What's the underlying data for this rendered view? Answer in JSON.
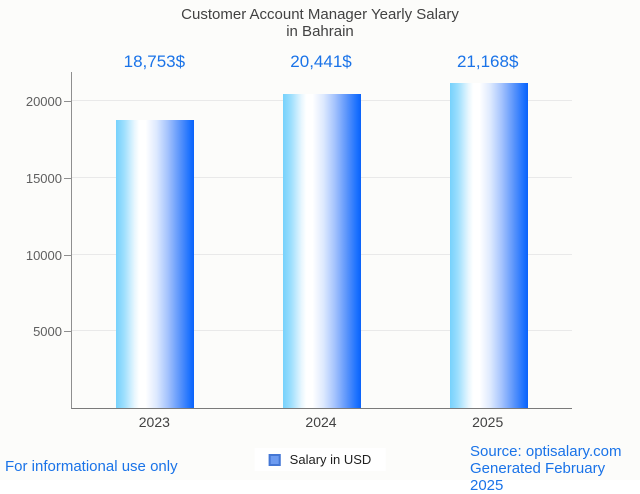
{
  "title": {
    "line1": "Customer Account Manager Yearly Salary",
    "line2": "in Bahrain"
  },
  "chart_data": {
    "type": "bar",
    "title": "Customer Account Manager Yearly Salary in Bahrain",
    "categories": [
      "2023",
      "2024",
      "2025"
    ],
    "values": [
      18753,
      20441,
      21168
    ],
    "value_labels": [
      "18,753$",
      "20,441$",
      "21,168$"
    ],
    "series_name": "Salary in USD",
    "xlabel": "",
    "ylabel": "",
    "ylim": [
      0,
      21900
    ],
    "yticks": [
      5000,
      10000,
      15000,
      20000
    ],
    "grid": "horizontal",
    "legend_position": "bottom",
    "bar_gradient": [
      "#76d1fc",
      "#ffffff",
      "#0a62fa"
    ]
  },
  "legend": {
    "label": "Salary in USD",
    "swatch_fill": "#6d9bf0",
    "swatch_border": "#4577d4"
  },
  "footer": {
    "left_note": "For informational use only",
    "source": "Source: optisalary.com",
    "generated": "Generated February 2025"
  },
  "colors": {
    "accent_blue": "#1a73e8",
    "title_gray": "#424242",
    "axis_label_gray": "#5f5f5f",
    "gridline": "#e9e9e9",
    "background": "#fcfcfa"
  }
}
